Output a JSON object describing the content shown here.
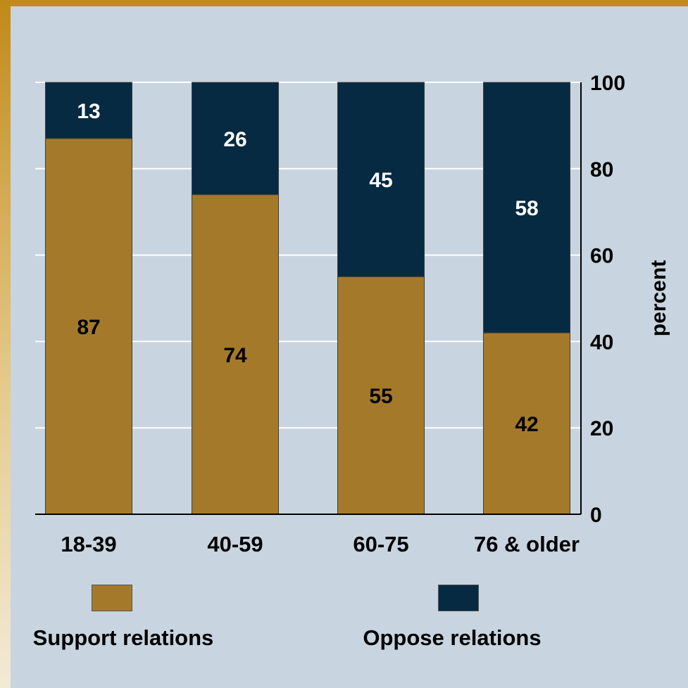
{
  "colors": {
    "support": "#a47a2a",
    "oppose": "#062a42",
    "grid": "#ffffff",
    "panel": "#c8d4df"
  },
  "chart_data": {
    "type": "bar",
    "stacked": true,
    "categories": [
      "18-39",
      "40-59",
      "60-75",
      "76 & older"
    ],
    "series": [
      {
        "name": "Support relations",
        "values": [
          87,
          74,
          55,
          42
        ],
        "color": "#a47a2a"
      },
      {
        "name": "Oppose relations",
        "values": [
          13,
          26,
          45,
          58
        ],
        "color": "#062a42"
      }
    ],
    "ylabel": "percent",
    "ylim": [
      0,
      100
    ],
    "yticks": [
      "0",
      "20",
      "40",
      "60",
      "80",
      "100"
    ],
    "y_axis_side": "right",
    "grid": true,
    "legend_position": "bottom"
  },
  "legend": {
    "support_label": "Support relations",
    "oppose_label": "Oppose relations"
  }
}
